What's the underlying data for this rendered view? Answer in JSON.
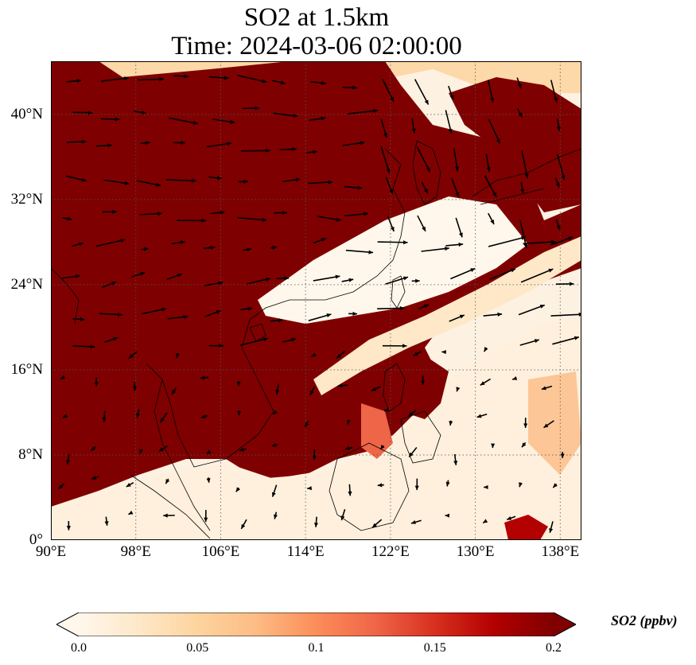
{
  "title": {
    "line1": "SO2 at 1.5km",
    "line2": "Time: 2024-03-06 02:00:00"
  },
  "map": {
    "extent": {
      "lon_min": 90,
      "lon_max": 140,
      "lat_min": 0,
      "lat_max": 45
    },
    "lon_ticks": [
      {
        "value": 90,
        "label": "90°E"
      },
      {
        "value": 98,
        "label": "98°E"
      },
      {
        "value": 106,
        "label": "106°E"
      },
      {
        "value": 114,
        "label": "114°E"
      },
      {
        "value": 122,
        "label": "122°E"
      },
      {
        "value": 130,
        "label": "130°E"
      },
      {
        "value": 138,
        "label": "138°E"
      }
    ],
    "lat_ticks": [
      {
        "value": 0,
        "label": "0°"
      },
      {
        "value": 8,
        "label": "8°N"
      },
      {
        "value": 16,
        "label": "16°N"
      },
      {
        "value": 24,
        "label": "24°N"
      },
      {
        "value": 32,
        "label": "32°N"
      },
      {
        "value": 40,
        "label": "40°N"
      }
    ],
    "gridlines": true,
    "field_colors": [
      "#fff7ec",
      "#fee8c8",
      "#fdd49e",
      "#fdbb84",
      "#fc8d59",
      "#ef6548",
      "#d7301f",
      "#b30000",
      "#7f0000"
    ],
    "saturated_color": "#7f0000",
    "coastline_color": "#000000",
    "wind_arrow_color": "#000000"
  },
  "colorbar": {
    "label": "SO2 (ppbv)",
    "min": 0.0,
    "max": 0.2,
    "extend": "both",
    "ticks": [
      "0.0",
      "0.05",
      "0.1",
      "0.15",
      "0.2"
    ],
    "colors": [
      "#fff7ec",
      "#fee8c8",
      "#fdd49e",
      "#fdbb84",
      "#fc8d59",
      "#ef6548",
      "#d7301f",
      "#b30000",
      "#7f0000"
    ]
  }
}
